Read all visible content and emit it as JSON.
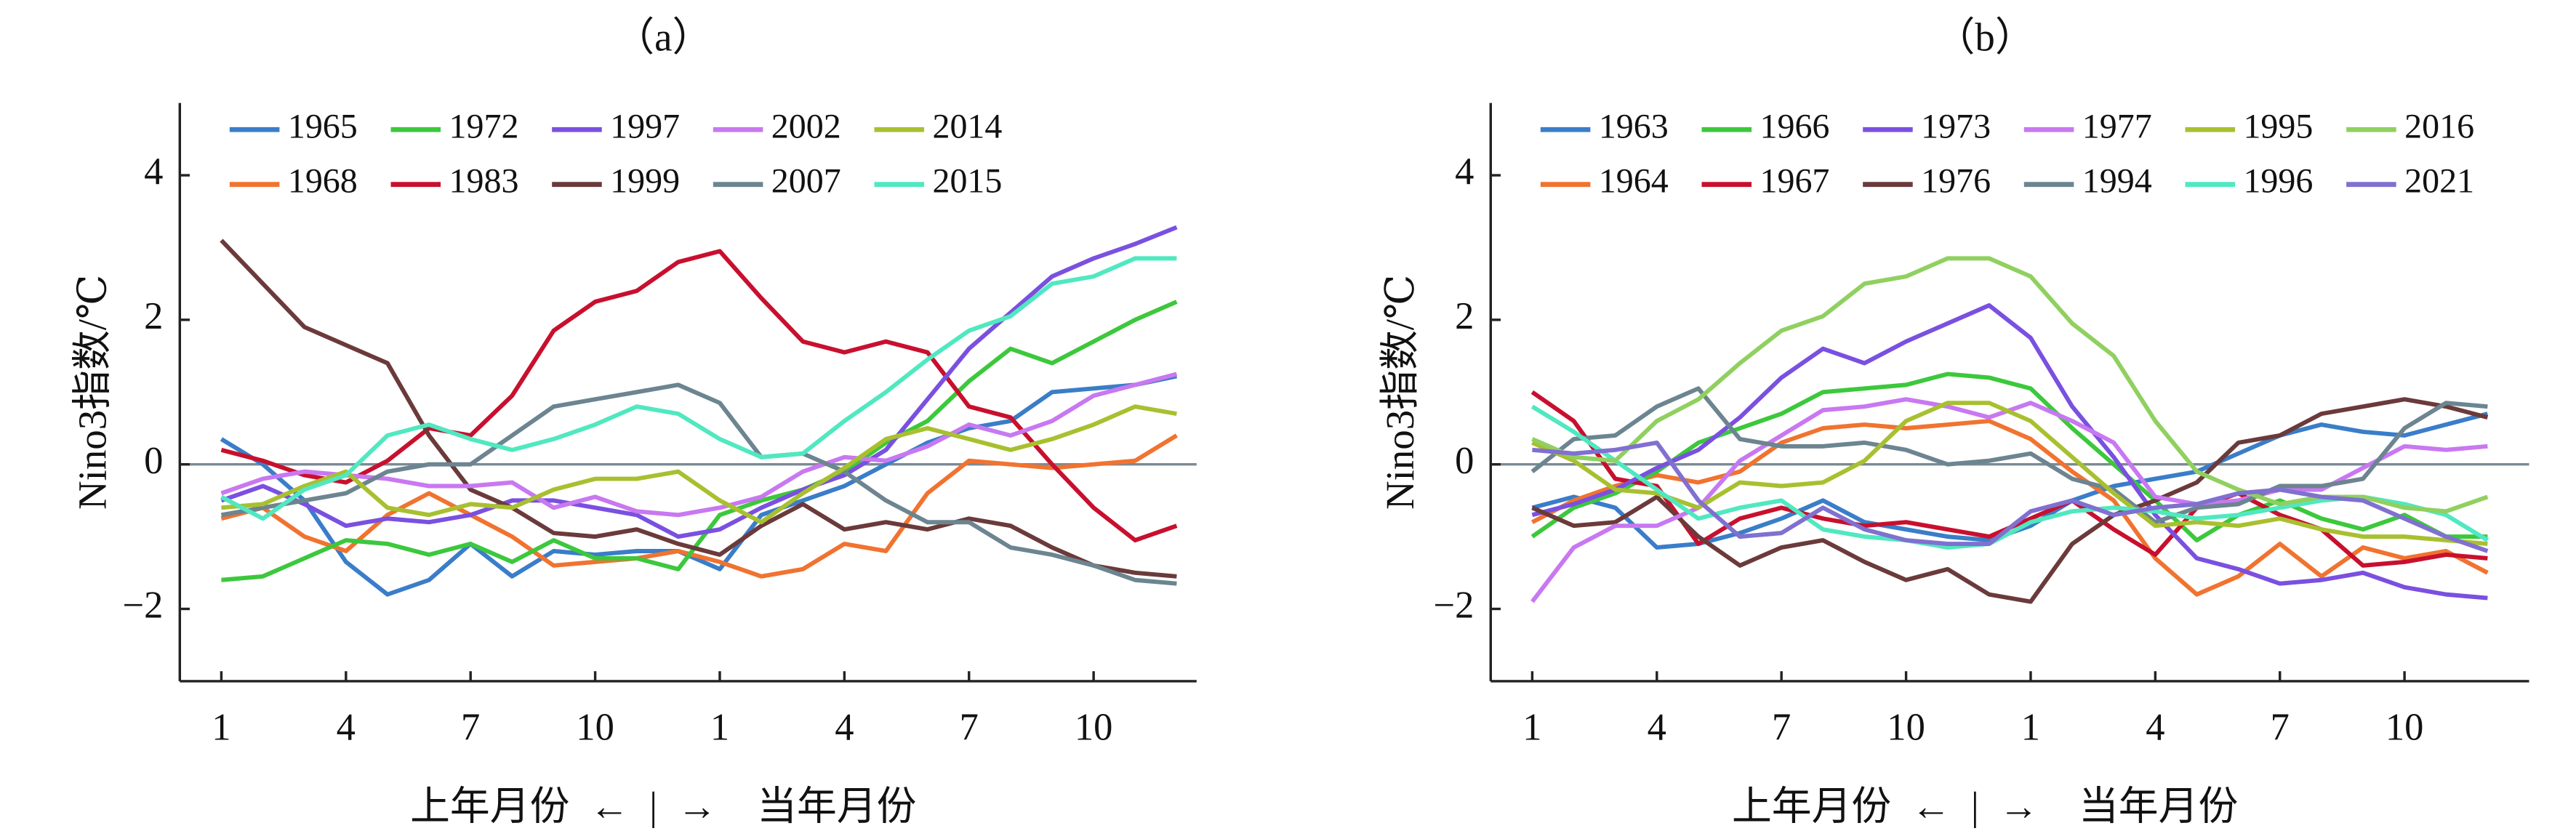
{
  "chart_data": [
    {
      "type": "line",
      "title": "（a）",
      "y_label": "Nino3指数/℃",
      "x_label": "上年月份  ←  |  →    当年月份",
      "categories": [
        "1",
        null,
        null,
        "4",
        null,
        null,
        "7",
        null,
        null,
        "10",
        null,
        null,
        "1",
        null,
        null,
        "4",
        null,
        null,
        "7",
        null,
        null,
        "10",
        null,
        null
      ],
      "ylim": [
        -3,
        5
      ],
      "yticks": [
        {
          "value": -2,
          "label": "−2"
        },
        0,
        2,
        4
      ],
      "hline": 0,
      "series": [
        {
          "name": "1965",
          "color": "#3a7dc9",
          "values": [
            0.35,
            0,
            -0.5,
            -1.35,
            -1.8,
            -1.6,
            -1.1,
            -1.55,
            -1.2,
            -1.25,
            -1.2,
            -1.2,
            -1.45,
            -0.7,
            -0.5,
            -0.3,
            0,
            0.3,
            0.5,
            0.6,
            1.0,
            1.05,
            1.1,
            1.22
          ]
        },
        {
          "name": "1968",
          "color": "#f07330",
          "values": [
            -0.75,
            -0.6,
            -1.0,
            -1.2,
            -0.7,
            -0.4,
            -0.7,
            -1.0,
            -1.4,
            -1.35,
            -1.3,
            -1.2,
            -1.35,
            -1.55,
            -1.45,
            -1.1,
            -1.2,
            -0.4,
            0.05,
            0,
            -0.05,
            0,
            0.05,
            0.4
          ]
        },
        {
          "name": "1972",
          "color": "#3cc83c",
          "values": [
            -1.6,
            -1.55,
            -1.3,
            -1.05,
            -1.1,
            -1.25,
            -1.1,
            -1.35,
            -1.05,
            -1.3,
            -1.3,
            -1.45,
            -0.7,
            -0.5,
            -0.35,
            -0.1,
            0.3,
            0.6,
            1.15,
            1.6,
            1.4,
            1.7,
            2.0,
            2.25
          ]
        },
        {
          "name": "1983",
          "color": "#c8102e",
          "values": [
            0.2,
            0.05,
            -0.15,
            -0.25,
            0.05,
            0.5,
            0.4,
            0.95,
            1.85,
            2.25,
            2.4,
            2.8,
            2.95,
            2.3,
            1.7,
            1.55,
            1.7,
            1.55,
            0.8,
            0.65,
            0,
            -0.6,
            -1.05,
            -0.85
          ]
        },
        {
          "name": "1997",
          "color": "#7a50e0",
          "values": [
            -0.5,
            -0.3,
            -0.55,
            -0.85,
            -0.75,
            -0.8,
            -0.7,
            -0.5,
            -0.5,
            -0.6,
            -0.7,
            -1.0,
            -0.9,
            -0.6,
            -0.35,
            -0.15,
            0.2,
            0.9,
            1.6,
            2.1,
            2.6,
            2.85,
            3.05,
            3.28
          ]
        },
        {
          "name": "1999",
          "color": "#6b3a3a",
          "values": [
            3.1,
            2.5,
            1.9,
            1.65,
            1.4,
            0.4,
            -0.35,
            -0.6,
            -0.95,
            -1.0,
            -0.9,
            -1.1,
            -1.25,
            -0.85,
            -0.55,
            -0.9,
            -0.8,
            -0.9,
            -0.75,
            -0.85,
            -1.15,
            -1.4,
            -1.5,
            -1.55
          ]
        },
        {
          "name": "2002",
          "color": "#c878f0",
          "values": [
            -0.4,
            -0.2,
            -0.1,
            -0.15,
            -0.2,
            -0.3,
            -0.3,
            -0.25,
            -0.6,
            -0.45,
            -0.65,
            -0.7,
            -0.6,
            -0.45,
            -0.1,
            0.1,
            0.05,
            0.25,
            0.55,
            0.4,
            0.6,
            0.95,
            1.1,
            1.25
          ]
        },
        {
          "name": "2007",
          "color": "#6c8590",
          "values": [
            -0.7,
            -0.6,
            -0.5,
            -0.4,
            -0.1,
            0,
            0,
            0.4,
            0.8,
            0.9,
            1.0,
            1.1,
            0.85,
            0.1,
            0.15,
            -0.1,
            -0.5,
            -0.8,
            -0.8,
            -1.15,
            -1.25,
            -1.4,
            -1.6,
            -1.65
          ]
        },
        {
          "name": "2014",
          "color": "#a8c030",
          "values": [
            -0.6,
            -0.55,
            -0.3,
            -0.1,
            -0.6,
            -0.7,
            -0.55,
            -0.6,
            -0.35,
            -0.2,
            -0.2,
            -0.1,
            -0.5,
            -0.8,
            -0.4,
            -0.05,
            0.35,
            0.5,
            0.35,
            0.2,
            0.35,
            0.55,
            0.8,
            0.7
          ]
        },
        {
          "name": "2015",
          "color": "#50e8c0",
          "values": [
            -0.45,
            -0.75,
            -0.35,
            -0.15,
            0.4,
            0.55,
            0.35,
            0.2,
            0.35,
            0.55,
            0.8,
            0.7,
            0.35,
            0.1,
            0.15,
            0.6,
            1.0,
            1.45,
            1.85,
            2.05,
            2.5,
            2.6,
            2.85,
            2.85
          ]
        }
      ]
    },
    {
      "type": "line",
      "title": "（b）",
      "y_label": "Nino3指数/℃",
      "x_label": "上年月份  ←  |  →    当年月份",
      "categories": [
        "1",
        null,
        null,
        "4",
        null,
        null,
        "7",
        null,
        null,
        "10",
        null,
        null,
        "1",
        null,
        null,
        "4",
        null,
        null,
        "7",
        null,
        null,
        "10",
        null,
        null
      ],
      "ylim": [
        -3,
        5
      ],
      "yticks": [
        {
          "value": -2,
          "label": "−2"
        },
        0,
        2,
        4
      ],
      "hline": 0,
      "series": [
        {
          "name": "1963",
          "color": "#3a7dc9",
          "values": [
            -0.6,
            -0.45,
            -0.6,
            -1.15,
            -1.1,
            -0.95,
            -0.75,
            -0.5,
            -0.8,
            -0.9,
            -1.0,
            -1.05,
            -0.85,
            -0.5,
            -0.3,
            -0.2,
            -0.1,
            0.15,
            0.4,
            0.55,
            0.45,
            0.4,
            0.55,
            0.7
          ]
        },
        {
          "name": "1964",
          "color": "#f07330",
          "values": [
            -0.8,
            -0.5,
            -0.3,
            -0.15,
            -0.25,
            -0.1,
            0.3,
            0.5,
            0.55,
            0.5,
            0.55,
            0.6,
            0.35,
            -0.1,
            -0.5,
            -1.3,
            -1.8,
            -1.55,
            -1.1,
            -1.55,
            -1.15,
            -1.3,
            -1.2,
            -1.5
          ]
        },
        {
          "name": "1966",
          "color": "#3cc83c",
          "values": [
            -1.0,
            -0.6,
            -0.4,
            -0.1,
            0.3,
            0.5,
            0.7,
            1.0,
            1.05,
            1.1,
            1.25,
            1.2,
            1.05,
            0.5,
            0,
            -0.5,
            -1.05,
            -0.7,
            -0.5,
            -0.75,
            -0.9,
            -0.7,
            -1.0,
            -1.0
          ]
        },
        {
          "name": "1967",
          "color": "#c8102e",
          "values": [
            1.0,
            0.6,
            -0.2,
            -0.3,
            -1.1,
            -0.75,
            -0.6,
            -0.75,
            -0.85,
            -0.8,
            -0.9,
            -1.0,
            -0.75,
            -0.5,
            -0.9,
            -1.25,
            -0.6,
            -0.4,
            -0.7,
            -0.9,
            -1.4,
            -1.35,
            -1.25,
            -1.3
          ]
        },
        {
          "name": "1973",
          "color": "#7a50e0",
          "values": [
            -0.7,
            -0.55,
            -0.35,
            -0.05,
            0.2,
            0.65,
            1.2,
            1.6,
            1.4,
            1.7,
            1.95,
            2.2,
            1.75,
            0.8,
            0.1,
            -0.7,
            -1.3,
            -1.45,
            -1.65,
            -1.6,
            -1.5,
            -1.7,
            -1.8,
            -1.85
          ]
        },
        {
          "name": "1976",
          "color": "#6b3a3a",
          "values": [
            -0.6,
            -0.85,
            -0.8,
            -0.45,
            -1.0,
            -1.4,
            -1.15,
            -1.05,
            -1.35,
            -1.6,
            -1.45,
            -1.8,
            -1.9,
            -1.1,
            -0.7,
            -0.5,
            -0.25,
            0.3,
            0.4,
            0.7,
            0.8,
            0.9,
            0.8,
            0.65
          ]
        },
        {
          "name": "1977",
          "color": "#c878f0",
          "values": [
            -1.9,
            -1.15,
            -0.85,
            -0.85,
            -0.6,
            0.05,
            0.4,
            0.75,
            0.8,
            0.9,
            0.8,
            0.65,
            0.85,
            0.6,
            0.3,
            -0.45,
            -0.55,
            -0.5,
            -0.35,
            -0.35,
            -0.05,
            0.25,
            0.2,
            0.25
          ]
        },
        {
          "name": "1994",
          "color": "#6c8590",
          "values": [
            -0.1,
            0.35,
            0.4,
            0.8,
            1.05,
            0.35,
            0.25,
            0.25,
            0.3,
            0.2,
            0,
            0.05,
            0.15,
            -0.2,
            -0.35,
            -0.8,
            -0.6,
            -0.55,
            -0.3,
            -0.3,
            -0.2,
            0.5,
            0.85,
            0.8
          ]
        },
        {
          "name": "1995",
          "color": "#a8c030",
          "values": [
            0.3,
            0.05,
            -0.35,
            -0.4,
            -0.6,
            -0.25,
            -0.3,
            -0.25,
            0.05,
            0.6,
            0.85,
            0.85,
            0.6,
            0.1,
            -0.4,
            -0.85,
            -0.8,
            -0.85,
            -0.75,
            -0.9,
            -1.0,
            -1.0,
            -1.05,
            -1.1
          ]
        },
        {
          "name": "1996",
          "color": "#50e8c0",
          "values": [
            0.8,
            0.45,
            0.05,
            -0.35,
            -0.75,
            -0.6,
            -0.5,
            -0.9,
            -1.0,
            -1.05,
            -1.15,
            -1.1,
            -0.8,
            -0.65,
            -0.6,
            -0.65,
            -0.75,
            -0.7,
            -0.6,
            -0.5,
            -0.45,
            -0.55,
            -0.7,
            -1.05
          ]
        },
        {
          "name": "2016",
          "color": "#90d060",
          "values": [
            0.35,
            0.1,
            0.05,
            0.6,
            0.9,
            1.4,
            1.85,
            2.05,
            2.5,
            2.6,
            2.85,
            2.85,
            2.6,
            1.95,
            1.5,
            0.6,
            -0.1,
            -0.35,
            -0.55,
            -0.45,
            -0.45,
            -0.6,
            -0.65,
            -0.45
          ]
        },
        {
          "name": "2021",
          "color": "#8070d0",
          "values": [
            0.2,
            0.15,
            0.2,
            0.3,
            -0.5,
            -1.0,
            -0.95,
            -0.6,
            -0.9,
            -1.05,
            -1.1,
            -1.1,
            -0.65,
            -0.5,
            -0.7,
            -0.6,
            -0.55,
            -0.4,
            -0.35,
            -0.45,
            -0.5,
            -0.75,
            -1.0,
            -1.2
          ]
        }
      ]
    }
  ]
}
